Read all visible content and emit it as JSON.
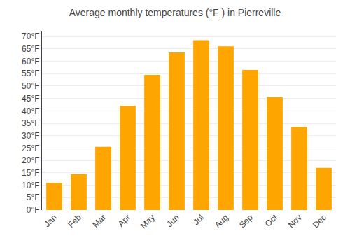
{
  "chart_data": {
    "type": "bar",
    "title": "Average monthly temperatures (°F ) in Pierreville",
    "categories": [
      "Jan",
      "Feb",
      "Mar",
      "Apr",
      "May",
      "Jun",
      "Jul",
      "Aug",
      "Sep",
      "Oct",
      "Nov",
      "Dec"
    ],
    "values": [
      11,
      14.5,
      25.5,
      42,
      54.5,
      63.5,
      68.5,
      66,
      56.5,
      45.5,
      33.5,
      17
    ],
    "color": "#FFA500",
    "ylim": [
      0,
      72
    ],
    "yticks": [
      {
        "value": 0,
        "label": "0°F"
      },
      {
        "value": 5,
        "label": "5°F"
      },
      {
        "value": 10,
        "label": "10°F"
      },
      {
        "value": 15,
        "label": "15°F"
      },
      {
        "value": 20,
        "label": "20°F"
      },
      {
        "value": 25,
        "label": "25°F"
      },
      {
        "value": 30,
        "label": "30°F"
      },
      {
        "value": 35,
        "label": "35°F"
      },
      {
        "value": 40,
        "label": "40°F"
      },
      {
        "value": 45,
        "label": "45°F"
      },
      {
        "value": 50,
        "label": "50°F"
      },
      {
        "value": 55,
        "label": "55°F"
      },
      {
        "value": 60,
        "label": "60°F"
      },
      {
        "value": 65,
        "label": "65°F"
      },
      {
        "value": 70,
        "label": "70°F"
      }
    ],
    "grid": true
  }
}
